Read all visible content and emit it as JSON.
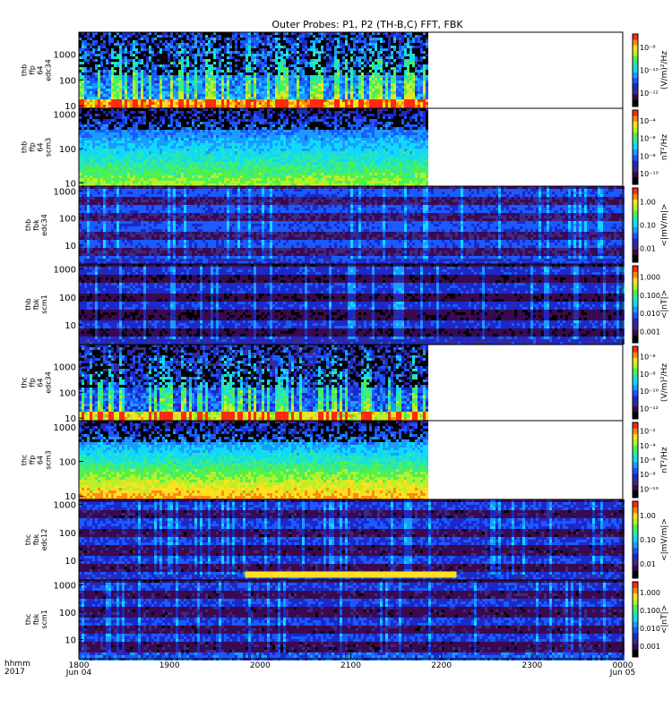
{
  "title": "Outer Probes: P1, P2 (TH-B,C) FFT, FBK",
  "colors": {
    "background": "#ffffff",
    "frame": "#000000",
    "palette": [
      "#000000",
      "#3a0a50",
      "#3a2a8c",
      "#1e28c8",
      "#1a5aff",
      "#1a9cff",
      "#10d8ff",
      "#28e8b0",
      "#50f050",
      "#b8f028",
      "#ffe020",
      "#ff8a10",
      "#ff2a10"
    ]
  },
  "chart_data": [
    {
      "type": "heatmap",
      "probe": "thb",
      "product": "ffp",
      "channel": "64",
      "sensor": "edc34",
      "ylabel": [
        "thb",
        "ffp",
        "64",
        "edc34"
      ],
      "yticks": [
        "10",
        "100",
        "1000"
      ],
      "ylog": true,
      "ylim": [
        8,
        7000
      ],
      "colorbar_label": "(V/m)²/Hz",
      "colorbar_ticks": [
        "10⁻⁸",
        "10⁻¹⁰",
        "10⁻¹²"
      ],
      "colorbar_log": true,
      "crange": [
        1e-14,
        1e-07
      ],
      "data_end": "2150",
      "texture": "spiky",
      "base_level": 0.35,
      "low_level": 0.7
    },
    {
      "type": "heatmap",
      "probe": "thb",
      "product": "ffp",
      "channel": "64",
      "sensor": "scm3",
      "ylabel": [
        "thb",
        "ffp",
        "64",
        "scm3"
      ],
      "yticks": [
        "10",
        "100",
        "1000"
      ],
      "ylog": true,
      "ylim": [
        8,
        1500
      ],
      "colorbar_label": "nT²/Hz",
      "colorbar_ticks": [
        "10⁻⁴",
        "10⁻⁶",
        "10⁻⁸",
        "10⁻¹⁰"
      ],
      "colorbar_log": true,
      "crange": [
        1e-11,
        0.001
      ],
      "data_end": "2150",
      "texture": "layered",
      "base_level": 0.25,
      "low_level": 0.6
    },
    {
      "type": "heatmap",
      "probe": "thb",
      "product": "fbk",
      "sensor": "edc34",
      "ylabel": [
        "thb",
        "fbk",
        "edc34"
      ],
      "yticks": [
        "10",
        "100",
        "1000"
      ],
      "ylog": true,
      "ylim": [
        2,
        1500
      ],
      "colorbar_label": "<|mV/m|>",
      "colorbar_ticks": [
        "1.00",
        "0.10",
        "0.01"
      ],
      "colorbar_log": true,
      "crange": [
        0.005,
        2.0
      ],
      "data_end": "0000",
      "texture": "banded",
      "base_level": 0.15,
      "low_level": 0.4
    },
    {
      "type": "heatmap",
      "probe": "thb",
      "product": "fbk",
      "sensor": "scm1",
      "ylabel": [
        "thb",
        "fbk",
        "scm1"
      ],
      "yticks": [
        "10",
        "100",
        "1000"
      ],
      "ylog": true,
      "ylim": [
        2,
        1500
      ],
      "colorbar_label": "<|nT|>",
      "colorbar_ticks": [
        "1.000",
        "0.100",
        "0.010",
        "0.001"
      ],
      "colorbar_log": true,
      "crange": [
        0.0007,
        1.5
      ],
      "data_end": "0000",
      "texture": "banded",
      "base_level": 0.1,
      "low_level": 0.35
    },
    {
      "type": "heatmap",
      "probe": "thc",
      "product": "ffp",
      "channel": "64",
      "sensor": "edc34",
      "ylabel": [
        "thc",
        "ffp",
        "64",
        "edc34"
      ],
      "yticks": [
        "10",
        "100",
        "1000"
      ],
      "ylog": true,
      "ylim": [
        8,
        7000
      ],
      "colorbar_label": "(V/m)²/Hz",
      "colorbar_ticks": [
        "10⁻⁶",
        "10⁻⁸",
        "10⁻¹⁰",
        "10⁻¹²"
      ],
      "colorbar_log": true,
      "crange": [
        1e-14,
        1e-05
      ],
      "data_end": "2150",
      "texture": "spiky",
      "base_level": 0.3,
      "low_level": 0.65
    },
    {
      "type": "heatmap",
      "probe": "thc",
      "product": "ffp",
      "channel": "64",
      "sensor": "scm3",
      "ylabel": [
        "thc",
        "ffp",
        "64",
        "scm3"
      ],
      "yticks": [
        "10",
        "100",
        "1000"
      ],
      "ylog": true,
      "ylim": [
        8,
        1500
      ],
      "colorbar_label": "nT²/Hz",
      "colorbar_ticks": [
        "10⁻²",
        "10⁻⁴",
        "10⁻⁶",
        "10⁻⁸",
        "10⁻¹⁰"
      ],
      "colorbar_log": true,
      "crange": [
        1e-11,
        0.01
      ],
      "data_end": "2150",
      "texture": "layered",
      "base_level": 0.25,
      "low_level": 0.8
    },
    {
      "type": "heatmap",
      "probe": "thc",
      "product": "fbk",
      "sensor": "edc12",
      "ylabel": [
        "thc",
        "fbk",
        "edc12"
      ],
      "yticks": [
        "10",
        "100",
        "1000"
      ],
      "ylog": true,
      "ylim": [
        2,
        1500
      ],
      "colorbar_label": "<|mV/m|>",
      "colorbar_ticks": [
        "1.00",
        "0.10",
        "0.01"
      ],
      "colorbar_log": true,
      "crange": [
        0.005,
        2.0
      ],
      "data_end": "0000",
      "texture": "banded",
      "base_level": 0.12,
      "low_level": 0.4,
      "highlight_band": {
        "y": 3,
        "start": "1950",
        "end": "2210",
        "level": 0.82
      }
    },
    {
      "type": "heatmap",
      "probe": "thc",
      "product": "fbk",
      "sensor": "scm1",
      "ylabel": [
        "thc",
        "fbk",
        "scm1"
      ],
      "yticks": [
        "10",
        "100",
        "1000"
      ],
      "ylog": true,
      "ylim": [
        2,
        1500
      ],
      "colorbar_label": "<|nT|>",
      "colorbar_ticks": [
        "1.000",
        "0.100",
        "0.010",
        "0.001"
      ],
      "colorbar_log": true,
      "crange": [
        0.0007,
        1.5
      ],
      "data_end": "0000",
      "texture": "banded",
      "base_level": 0.12,
      "low_level": 0.5
    }
  ],
  "time_axis": {
    "ticks": [
      "1800",
      "1900",
      "2000",
      "2100",
      "2200",
      "2300",
      "0000"
    ],
    "start_label": "hhmm",
    "year": "2017",
    "start_date": "Jun 04",
    "end_date": "Jun 05"
  }
}
